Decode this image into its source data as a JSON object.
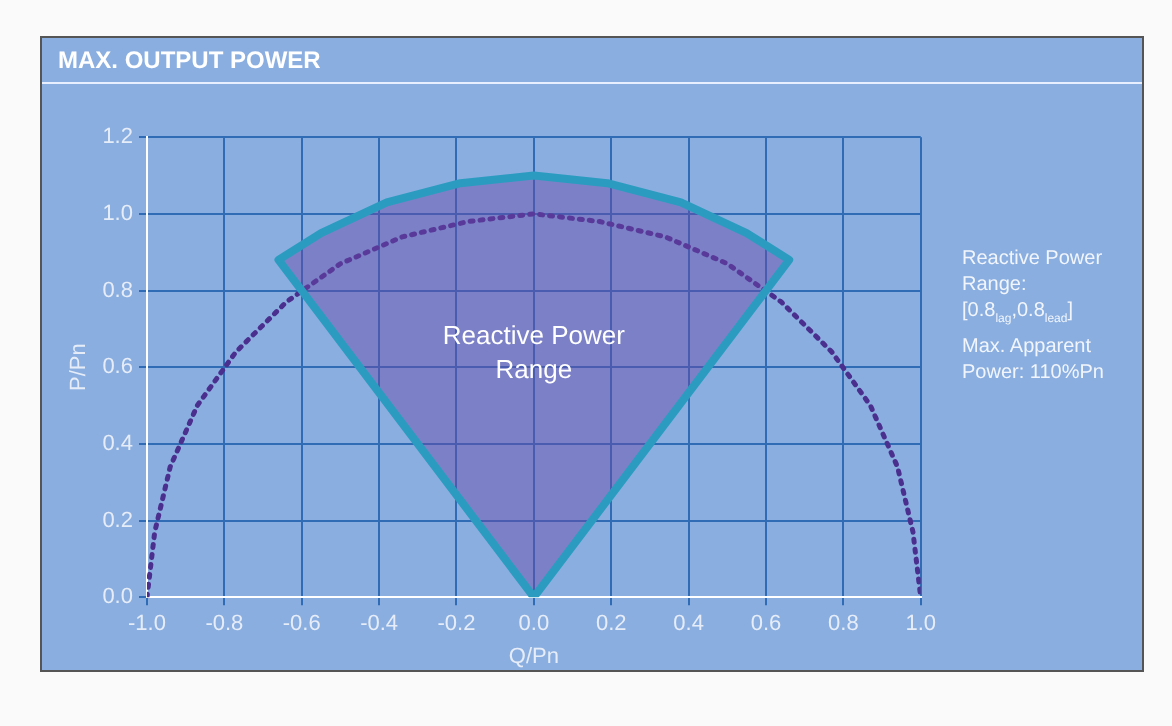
{
  "chart_data": {
    "type": "line",
    "title": "MAX. OUTPUT POWER",
    "xlabel": "Q/Pn",
    "ylabel": "P/Pn",
    "xlim": [
      -1.0,
      1.0
    ],
    "xticks": [
      {
        "value": -1,
        "label": "-1.0"
      },
      {
        "value": -0.8,
        "label": "-0.8"
      },
      {
        "value": -0.6,
        "label": "-0.6"
      },
      {
        "value": -0.4,
        "label": "-0.4"
      },
      {
        "value": -0.2,
        "label": "-0.2"
      },
      {
        "value": 0,
        "label": "0.0"
      },
      {
        "value": 0.2,
        "label": "0.2"
      },
      {
        "value": 0.4,
        "label": "0.4"
      },
      {
        "value": 0.6,
        "label": "0.6"
      },
      {
        "value": 0.8,
        "label": "0.8"
      },
      {
        "value": 1,
        "label": "1.0"
      }
    ],
    "ylim": [
      0,
      1.2
    ],
    "yticks": [
      {
        "value": 0,
        "label": "0.0"
      },
      {
        "value": 0.2,
        "label": "0.2"
      },
      {
        "value": 0.4,
        "label": "0.4"
      },
      {
        "value": 0.6,
        "label": "0.6"
      },
      {
        "value": 0.8,
        "label": "0.8"
      },
      {
        "value": 1,
        "label": "1.0"
      },
      {
        "value": 1.2,
        "label": "1.2"
      }
    ],
    "grid": true,
    "marker": "none",
    "series": [
      {
        "line_style": "dotted",
        "color": "#4b2f8f",
        "x": [
          -1,
          -0.98,
          -0.94,
          -0.87,
          -0.77,
          -0.64,
          -0.5,
          -0.34,
          -0.17,
          0,
          0.17,
          0.34,
          0.5,
          0.64,
          0.77,
          0.87,
          0.94,
          0.98,
          1
        ],
        "values": [
          0,
          0.17,
          0.34,
          0.5,
          0.64,
          0.77,
          0.87,
          0.94,
          0.98,
          1,
          0.98,
          0.94,
          0.87,
          0.77,
          0.64,
          0.5,
          0.34,
          0.17,
          0
        ]
      },
      {
        "type": "area",
        "line_style": "solid",
        "color": "#2b9cc0",
        "x": [
          0,
          -0.66,
          -0.55,
          -0.38,
          -0.19,
          0,
          0.19,
          0.38,
          0.55,
          0.66,
          0
        ],
        "values": [
          0,
          0.88,
          0.95,
          1.03,
          1.08,
          1.1,
          1.08,
          1.03,
          0.95,
          0.88,
          0
        ]
      }
    ],
    "annotations": [
      "Reactive Power Range",
      "Reactive Power Range: [0.8$_{lag}$,0.8$_{lead}$]",
      "Max. Apparent Power: 110%Pn"
    ]
  }
}
